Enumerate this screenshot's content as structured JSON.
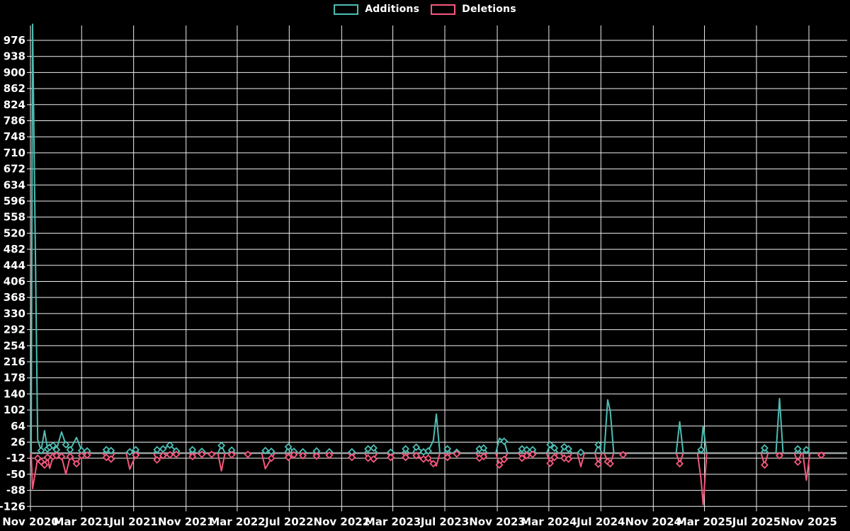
{
  "chart_data": {
    "type": "line",
    "title": "",
    "legend": {
      "position": "top-center",
      "entries": [
        "Additions",
        "Deletions"
      ]
    },
    "series": [
      {
        "name": "Additions",
        "color_key": "additions"
      },
      {
        "name": "Deletions",
        "color_key": "deletions"
      }
    ],
    "colors": {
      "background": "#000000",
      "additions": "#4dbdb2",
      "deletions": "#f4587d",
      "grid": "#efefef",
      "text": "#ffffff",
      "zero_line": "#9aa3a3"
    },
    "grid": true,
    "y_axis": {
      "min": -126,
      "max": 1014,
      "step": 38
    },
    "y_ticks": [
      976,
      938,
      900,
      862,
      824,
      786,
      748,
      710,
      672,
      634,
      596,
      558,
      520,
      482,
      444,
      406,
      368,
      330,
      292,
      254,
      216,
      178,
      140,
      102,
      64,
      26,
      -12,
      -50,
      -88,
      -126
    ],
    "x_ticks": [
      "Nov 2020",
      "Mar 2021",
      "Jul 2021",
      "Nov 2021",
      "Mar 2022",
      "Jul 2022",
      "Nov 2022",
      "Mar 2023",
      "Jul 2023",
      "Nov 2023",
      "Mar 2024",
      "Jul 2024",
      "Nov 2024",
      "Mar 2025",
      "Jul 2025",
      "Nov 2025"
    ],
    "x_domain": [
      "2020-11-01",
      "2025-12-01"
    ],
    "points": [
      {
        "date": "2020-11-06",
        "additions": 1014,
        "deletions": -84
      },
      {
        "date": "2020-11-18",
        "additions": 32,
        "deletions": -12
      },
      {
        "date": "2020-11-26",
        "additions": 6,
        "deletions": -20
      },
      {
        "date": "2020-12-04",
        "additions": 53,
        "deletions": -28
      },
      {
        "date": "2020-12-11",
        "additions": 10,
        "deletions": -10
      },
      {
        "date": "2020-12-16",
        "additions": 14,
        "deletions": -36
      },
      {
        "date": "2020-12-24",
        "additions": 18,
        "deletions": -8
      },
      {
        "date": "2021-01-01",
        "additions": 8,
        "deletions": -6
      },
      {
        "date": "2021-01-13",
        "additions": 50,
        "deletions": -8
      },
      {
        "date": "2021-01-23",
        "additions": 20,
        "deletions": -50
      },
      {
        "date": "2021-02-02",
        "additions": 8,
        "deletions": -8
      },
      {
        "date": "2021-02-17",
        "additions": 37,
        "deletions": -25
      },
      {
        "date": "2021-03-01",
        "additions": 6,
        "deletions": -6
      },
      {
        "date": "2021-03-14",
        "additions": 5,
        "deletions": -5
      },
      {
        "date": "2021-04-28",
        "additions": 8,
        "deletions": -10
      },
      {
        "date": "2021-05-09",
        "additions": 6,
        "deletions": -14
      },
      {
        "date": "2021-06-22",
        "additions": 3,
        "deletions": -38
      },
      {
        "date": "2021-07-06",
        "additions": 8,
        "deletions": -5
      },
      {
        "date": "2021-08-25",
        "additions": 8,
        "deletions": -16
      },
      {
        "date": "2021-09-08",
        "additions": 10,
        "deletions": -6
      },
      {
        "date": "2021-09-24",
        "additions": 19,
        "deletions": -4
      },
      {
        "date": "2021-10-09",
        "additions": 5,
        "deletions": -3
      },
      {
        "date": "2021-11-16",
        "additions": 8,
        "deletions": -8
      },
      {
        "date": "2021-12-08",
        "additions": 4,
        "deletions": -3
      },
      {
        "date": "2021-12-31",
        "additions": 0,
        "deletions": -3
      },
      {
        "date": "2022-01-23",
        "additions": 18,
        "deletions": -42
      },
      {
        "date": "2022-02-16",
        "additions": 7,
        "deletions": -4
      },
      {
        "date": "2022-03-26",
        "additions": 0,
        "deletions": -3
      },
      {
        "date": "2022-05-06",
        "additions": 6,
        "deletions": -37
      },
      {
        "date": "2022-05-20",
        "additions": 4,
        "deletions": -12
      },
      {
        "date": "2022-06-29",
        "additions": 15,
        "deletions": -10
      },
      {
        "date": "2022-07-12",
        "additions": 4,
        "deletions": -4
      },
      {
        "date": "2022-08-02",
        "additions": 3,
        "deletions": -6
      },
      {
        "date": "2022-09-03",
        "additions": 5,
        "deletions": -7
      },
      {
        "date": "2022-10-03",
        "additions": 3,
        "deletions": -5
      },
      {
        "date": "2022-11-25",
        "additions": 3,
        "deletions": -10
      },
      {
        "date": "2023-01-02",
        "additions": 10,
        "deletions": -12
      },
      {
        "date": "2023-01-15",
        "additions": 12,
        "deletions": -14
      },
      {
        "date": "2023-02-24",
        "additions": 2,
        "deletions": -10
      },
      {
        "date": "2023-03-31",
        "additions": 10,
        "deletions": -10
      },
      {
        "date": "2023-04-25",
        "additions": 14,
        "deletions": -6
      },
      {
        "date": "2023-05-12",
        "additions": 3,
        "deletions": -14
      },
      {
        "date": "2023-05-23",
        "additions": 5,
        "deletions": -12
      },
      {
        "date": "2023-06-04",
        "additions": 30,
        "deletions": -25
      },
      {
        "date": "2023-06-11",
        "additions": 92,
        "deletions": -30
      },
      {
        "date": "2023-07-07",
        "additions": 10,
        "deletions": -10
      },
      {
        "date": "2023-07-29",
        "additions": 2,
        "deletions": -2
      },
      {
        "date": "2023-09-20",
        "additions": 10,
        "deletions": -12
      },
      {
        "date": "2023-09-30",
        "additions": 12,
        "deletions": -8
      },
      {
        "date": "2023-11-06",
        "additions": 35,
        "deletions": -28
      },
      {
        "date": "2023-11-17",
        "additions": 28,
        "deletions": -15
      },
      {
        "date": "2023-12-29",
        "additions": 10,
        "deletions": -12
      },
      {
        "date": "2024-01-09",
        "additions": 8,
        "deletions": -6
      },
      {
        "date": "2024-01-23",
        "additions": 8,
        "deletions": -3
      },
      {
        "date": "2024-03-04",
        "additions": 20,
        "deletions": -24
      },
      {
        "date": "2024-03-14",
        "additions": 12,
        "deletions": -10
      },
      {
        "date": "2024-04-06",
        "additions": 15,
        "deletions": -12
      },
      {
        "date": "2024-04-16",
        "additions": 10,
        "deletions": -14
      },
      {
        "date": "2024-05-15",
        "additions": 2,
        "deletions": -32
      },
      {
        "date": "2024-06-25",
        "additions": 20,
        "deletions": -26
      },
      {
        "date": "2024-07-17",
        "additions": 126,
        "deletions": -20
      },
      {
        "date": "2024-07-23",
        "additions": 100,
        "deletions": -25
      },
      {
        "date": "2024-08-22",
        "additions": 0,
        "deletions": -4
      },
      {
        "date": "2025-01-02",
        "additions": 74,
        "deletions": -25
      },
      {
        "date": "2025-02-21",
        "additions": 8,
        "deletions": -62
      },
      {
        "date": "2025-02-26",
        "additions": 64,
        "deletions": -122
      },
      {
        "date": "2025-07-20",
        "additions": 12,
        "deletions": -28
      },
      {
        "date": "2025-08-24",
        "additions": 129,
        "deletions": -6
      },
      {
        "date": "2025-10-06",
        "additions": 10,
        "deletions": -21
      },
      {
        "date": "2025-10-26",
        "additions": 8,
        "deletions": -64
      },
      {
        "date": "2025-11-30",
        "additions": 0,
        "deletions": -5
      }
    ]
  }
}
